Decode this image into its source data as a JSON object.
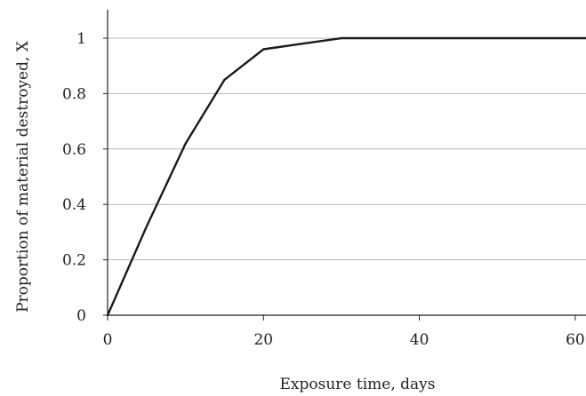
{
  "chart_data": {
    "type": "line",
    "title": "",
    "xlabel": "Exposure time, days",
    "ylabel": "Proportion of material destroyed, X",
    "xlim": [
      0,
      62
    ],
    "ylim": [
      0,
      1.1
    ],
    "x_ticks": [
      0,
      20,
      40,
      60
    ],
    "x_tick_labels": [
      "0",
      "20",
      "40",
      "60"
    ],
    "y_ticks": [
      0,
      0.2,
      0.4,
      0.6,
      0.8,
      1
    ],
    "y_tick_labels": [
      "0",
      "0.2",
      "0.4",
      "0.6",
      "0.8",
      "1"
    ],
    "grid": "horizontal",
    "legend": "none",
    "series": [
      {
        "x": [
          0,
          5,
          10,
          15,
          20,
          25,
          30,
          35,
          40,
          45,
          50,
          55,
          60,
          62
        ],
        "y": [
          0,
          0.32,
          0.62,
          0.85,
          0.96,
          0.98,
          1,
          1,
          1,
          1,
          1,
          1,
          1,
          1
        ],
        "color": "#1a1a1a"
      }
    ],
    "grid_color": "#b8b8b8",
    "axis_color": "#222222"
  }
}
